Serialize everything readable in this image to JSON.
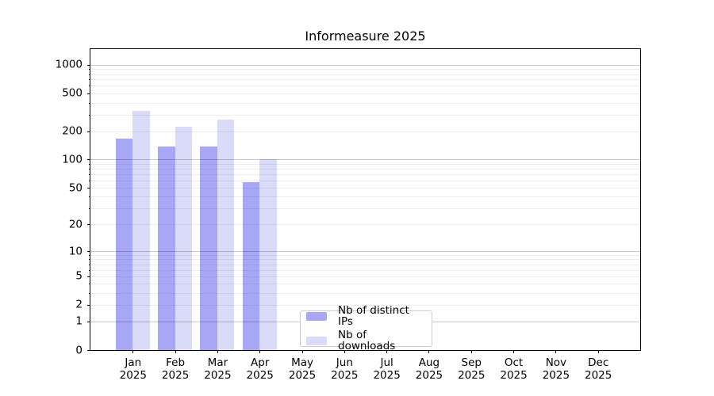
{
  "chart_data": {
    "type": "bar",
    "title": "Informeasure 2025",
    "year_label": "2025",
    "categories": [
      "Jan",
      "Feb",
      "Mar",
      "Apr",
      "May",
      "Jun",
      "Jul",
      "Aug",
      "Sep",
      "Oct",
      "Nov",
      "Dec"
    ],
    "series": [
      {
        "name": "Nb of distinct IPs",
        "color": "#a7a7f6",
        "values": [
          166,
          137,
          137,
          57,
          0,
          0,
          0,
          0,
          0,
          0,
          0,
          0
        ]
      },
      {
        "name": "Nb of downloads",
        "color": "#dadaf9",
        "values": [
          328,
          223,
          263,
          100,
          0,
          0,
          0,
          0,
          0,
          0,
          0,
          0
        ]
      }
    ],
    "xlabel": "",
    "ylabel": "",
    "y_axis": {
      "scale": "log10(1+value)",
      "ymin": 0,
      "ymax_visible": 1465,
      "labeled_ticks": [
        1000,
        500,
        200,
        100,
        50,
        20,
        10,
        5,
        2,
        1,
        0
      ],
      "decade_gridline_ticks": [
        1000,
        100,
        10,
        1
      ],
      "light_gridline_ticks": [
        900,
        800,
        700,
        600,
        500,
        400,
        300,
        200,
        90,
        80,
        70,
        60,
        50,
        40,
        30,
        20,
        9,
        8,
        7,
        6,
        5,
        4,
        3,
        2
      ],
      "minor_tick_marks": [
        900,
        800,
        700,
        600,
        400,
        300,
        90,
        80,
        70,
        60,
        40,
        30,
        9,
        8,
        7,
        6,
        4,
        3
      ]
    },
    "grid": "horizontal",
    "legend_position": "bottom-center",
    "colors": {
      "major_grid": "#00000036",
      "minor_grid": "#00000012",
      "axis": "#000000",
      "background": "#ffffff",
      "legend_border": "#cccccc"
    }
  }
}
